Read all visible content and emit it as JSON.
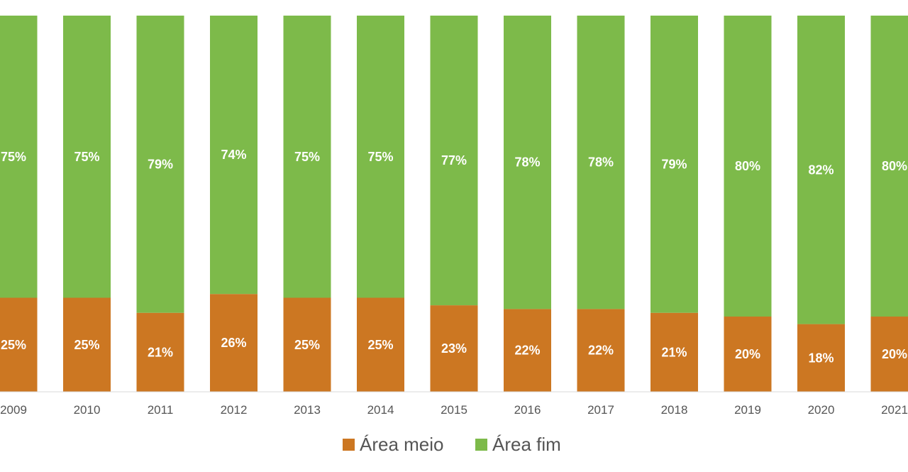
{
  "chart_data": {
    "type": "bar",
    "stacked": true,
    "percent_stacked": true,
    "categories": [
      "2009",
      "2010",
      "2011",
      "2012",
      "2013",
      "2014",
      "2015",
      "2016",
      "2017",
      "2018",
      "2019",
      "2020",
      "2021"
    ],
    "series": [
      {
        "name": "Área meio",
        "color": "#cc7722",
        "values": [
          25,
          25,
          21,
          26,
          25,
          25,
          23,
          22,
          22,
          21,
          20,
          18,
          20
        ],
        "labels": [
          "25%",
          "25%",
          "21%",
          "26%",
          "25%",
          "25%",
          "23%",
          "22%",
          "22%",
          "21%",
          "20%",
          "18%",
          "20%"
        ]
      },
      {
        "name": "Área fim",
        "color": "#7dba4a",
        "values": [
          75,
          75,
          79,
          74,
          75,
          75,
          77,
          78,
          78,
          79,
          80,
          82,
          80
        ],
        "labels": [
          "75%",
          "75%",
          "79%",
          "74%",
          "75%",
          "75%",
          "77%",
          "78%",
          "78%",
          "79%",
          "80%",
          "82%",
          "80%"
        ]
      }
    ],
    "ylim": [
      0,
      100
    ],
    "grid": false,
    "legend_position": "bottom"
  }
}
